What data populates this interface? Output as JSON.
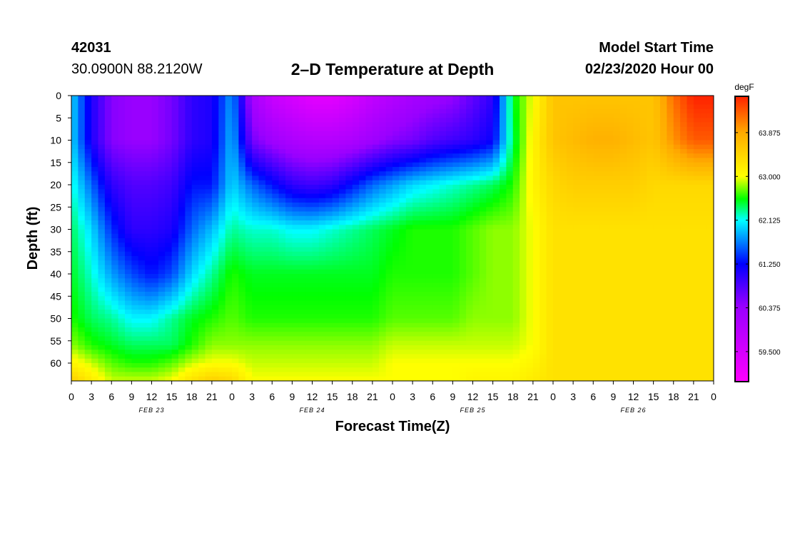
{
  "header": {
    "station_id": "42031",
    "coordinates": "30.0900N 88.2120W",
    "title": "2–D Temperature at Depth",
    "start_label": "Model Start Time",
    "start_value": "02/23/2020 Hour 00"
  },
  "chart_data": {
    "type": "heatmap",
    "title": "2–D Temperature at Depth",
    "xlabel": "Forecast Time(Z)",
    "ylabel": "Depth (ft)",
    "x_unit": "forecast hour",
    "xlim": [
      0,
      96
    ],
    "ylim": [
      0,
      64
    ],
    "y_inverted": true,
    "x_tick_step_hours": 3,
    "x_tick_labels": [
      "0",
      "3",
      "6",
      "9",
      "12",
      "15",
      "18",
      "21",
      "0",
      "3",
      "6",
      "9",
      "12",
      "15",
      "18",
      "21",
      "0",
      "3",
      "6",
      "9",
      "12",
      "15",
      "18",
      "21",
      "0",
      "3",
      "6",
      "9",
      "12",
      "15",
      "18",
      "21",
      "0"
    ],
    "y_ticks": [
      0,
      5,
      10,
      15,
      20,
      25,
      30,
      35,
      40,
      45,
      50,
      55,
      60
    ],
    "date_labels": [
      {
        "text": "FEB 23",
        "hour": 12
      },
      {
        "text": "FEB 24",
        "hour": 36
      },
      {
        "text": "FEB 25",
        "hour": 60
      },
      {
        "text": "FEB 26",
        "hour": 84
      }
    ],
    "colorbar": {
      "unit": "degF",
      "min": 58.9,
      "max": 64.6,
      "ticks": [
        "63.875",
        "63.000",
        "62.125",
        "61.250",
        "60.375",
        "59.500"
      ],
      "colormap": [
        {
          "value": 58.9,
          "color": "#ff00ff"
        },
        {
          "value": 60.4,
          "color": "#9900ff"
        },
        {
          "value": 61.25,
          "color": "#0000ff"
        },
        {
          "value": 62.125,
          "color": "#00ffff"
        },
        {
          "value": 62.55,
          "color": "#00ff00"
        },
        {
          "value": 63.0,
          "color": "#ffff00"
        },
        {
          "value": 63.875,
          "color": "#ffaa00"
        },
        {
          "value": 64.6,
          "color": "#ff2200"
        }
      ]
    },
    "temperature_grid": {
      "depths_ft": [
        0,
        10,
        20,
        30,
        40,
        50,
        56,
        60,
        64
      ],
      "hours": [
        0,
        3,
        6,
        9,
        12,
        15,
        18,
        21,
        24,
        27,
        30,
        33,
        36,
        39,
        42,
        45,
        48,
        51,
        54,
        57,
        60,
        63,
        66,
        69,
        72,
        75,
        78,
        81,
        84,
        87,
        90,
        93,
        96
      ],
      "values_degF": [
        [
          62.0,
          61.1,
          60.5,
          60.4,
          60.4,
          60.6,
          61.0,
          61.1,
          61.8,
          60.2,
          59.7,
          59.5,
          59.3,
          59.3,
          59.5,
          59.8,
          60.0,
          60.2,
          60.3,
          60.4,
          60.7,
          61.0,
          62.5,
          63.0,
          63.6,
          63.6,
          63.6,
          63.6,
          63.6,
          63.6,
          64.2,
          64.6,
          64.6
        ],
        [
          62.0,
          61.1,
          60.5,
          60.4,
          60.4,
          60.6,
          61.0,
          61.1,
          61.9,
          60.6,
          60.3,
          60.1,
          60.0,
          60.0,
          60.1,
          60.3,
          60.5,
          60.6,
          60.8,
          60.9,
          61.0,
          61.2,
          62.4,
          63.1,
          63.6,
          63.7,
          63.8,
          63.8,
          63.7,
          63.6,
          64.0,
          64.3,
          64.3
        ],
        [
          62.2,
          61.6,
          61.0,
          60.8,
          60.8,
          60.9,
          61.3,
          61.3,
          62.0,
          61.6,
          61.3,
          61.0,
          60.9,
          61.0,
          61.3,
          61.6,
          61.8,
          62.0,
          62.1,
          62.2,
          62.3,
          62.4,
          62.6,
          63.1,
          63.4,
          63.5,
          63.5,
          63.5,
          63.5,
          63.4,
          63.4,
          63.4,
          63.4
        ],
        [
          62.4,
          62.0,
          61.4,
          61.0,
          61.0,
          61.1,
          61.6,
          61.9,
          62.3,
          62.2,
          62.2,
          62.1,
          62.1,
          62.2,
          62.3,
          62.4,
          62.5,
          62.6,
          62.6,
          62.6,
          62.7,
          62.8,
          62.8,
          63.0,
          63.3,
          63.3,
          63.3,
          63.3,
          63.3,
          63.3,
          63.3,
          63.3,
          63.3
        ],
        [
          62.5,
          62.2,
          61.8,
          61.5,
          61.3,
          61.5,
          62.0,
          62.3,
          62.6,
          62.5,
          62.5,
          62.5,
          62.5,
          62.5,
          62.5,
          62.5,
          62.6,
          62.6,
          62.6,
          62.6,
          62.7,
          62.8,
          62.8,
          63.0,
          63.3,
          63.3,
          63.3,
          63.3,
          63.3,
          63.3,
          63.3,
          63.3,
          63.3
        ],
        [
          62.6,
          62.4,
          62.3,
          62.1,
          62.1,
          62.3,
          62.5,
          62.6,
          62.7,
          62.6,
          62.6,
          62.6,
          62.6,
          62.6,
          62.6,
          62.6,
          62.7,
          62.7,
          62.7,
          62.7,
          62.8,
          62.8,
          62.8,
          63.0,
          63.3,
          63.3,
          63.3,
          63.3,
          63.3,
          63.3,
          63.3,
          63.3,
          63.3
        ],
        [
          62.8,
          62.6,
          62.5,
          62.4,
          62.4,
          62.4,
          62.6,
          62.8,
          62.8,
          62.8,
          62.8,
          62.8,
          62.8,
          62.8,
          62.8,
          62.8,
          62.9,
          62.9,
          62.9,
          62.9,
          62.9,
          62.9,
          62.9,
          63.0,
          63.3,
          63.3,
          63.3,
          63.3,
          63.3,
          63.3,
          63.3,
          63.3,
          63.3
        ],
        [
          63.1,
          62.9,
          62.7,
          62.6,
          62.6,
          62.7,
          62.9,
          63.0,
          63.0,
          62.9,
          62.9,
          62.9,
          62.9,
          62.9,
          62.9,
          62.9,
          63.0,
          63.0,
          63.0,
          63.0,
          63.0,
          63.0,
          63.0,
          63.1,
          63.3,
          63.3,
          63.3,
          63.3,
          63.3,
          63.3,
          63.3,
          63.3,
          63.3
        ],
        [
          63.5,
          63.2,
          62.9,
          62.9,
          62.9,
          63.0,
          63.3,
          63.5,
          63.4,
          63.0,
          63.0,
          63.0,
          63.0,
          63.0,
          63.0,
          63.0,
          63.0,
          63.0,
          63.0,
          63.0,
          63.1,
          63.1,
          63.1,
          63.2,
          63.3,
          63.3,
          63.3,
          63.3,
          63.3,
          63.3,
          63.3,
          63.3,
          63.3
        ]
      ]
    }
  }
}
